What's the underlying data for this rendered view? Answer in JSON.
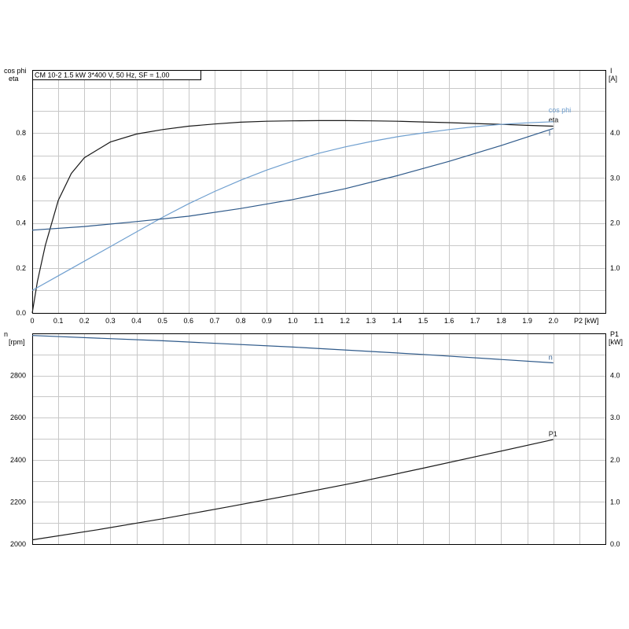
{
  "chart_data": [
    {
      "type": "line",
      "name_box": "CM 10-2   1.5 kW   3*400 V, 50 Hz, SF = 1,00",
      "xlabel": "P2 [kW]",
      "x_ticks": [
        "0",
        "0.1",
        "0.2",
        "0.3",
        "0.4",
        "0.5",
        "0.6",
        "0.7",
        "0.8",
        "0.9",
        "1.0",
        "1.1",
        "1.2",
        "1.3",
        "1.4",
        "1.5",
        "1.6",
        "1.7",
        "1.8",
        "1.9",
        "2.0"
      ],
      "xlim": [
        0,
        2.2
      ],
      "y_left_label_1": "cos phi",
      "y_left_label_2": "eta",
      "y_left_ticks": [
        "0.0",
        "0.2",
        "0.4",
        "0.6",
        "0.8"
      ],
      "y_left_lim": [
        0,
        1.08
      ],
      "y_right_label_1": "I",
      "y_right_label_2": "[A]",
      "y_right_ticks": [
        "1.0",
        "2.0",
        "3.0",
        "4.0"
      ],
      "y_right_lim": [
        0,
        5.4
      ],
      "grid": true,
      "series": [
        {
          "name": "eta",
          "axis": "left",
          "color": "#1a1a1a",
          "x": [
            0,
            0.02,
            0.05,
            0.1,
            0.15,
            0.2,
            0.3,
            0.4,
            0.5,
            0.6,
            0.7,
            0.8,
            0.9,
            1.0,
            1.1,
            1.2,
            1.3,
            1.4,
            1.5,
            1.6,
            1.7,
            1.8,
            1.9,
            2.0
          ],
          "y": [
            0,
            0.14,
            0.3,
            0.5,
            0.62,
            0.69,
            0.76,
            0.795,
            0.815,
            0.83,
            0.84,
            0.848,
            0.852,
            0.854,
            0.855,
            0.855,
            0.854,
            0.852,
            0.849,
            0.846,
            0.842,
            0.838,
            0.834,
            0.83
          ]
        },
        {
          "name": "cos phi",
          "axis": "left",
          "color": "#6f9fcf",
          "x": [
            0,
            0.1,
            0.2,
            0.3,
            0.4,
            0.5,
            0.6,
            0.7,
            0.8,
            0.9,
            1.0,
            1.1,
            1.2,
            1.3,
            1.4,
            1.5,
            1.6,
            1.7,
            1.8,
            1.9,
            2.0
          ],
          "y": [
            0.1,
            0.165,
            0.23,
            0.295,
            0.36,
            0.425,
            0.485,
            0.54,
            0.59,
            0.635,
            0.675,
            0.71,
            0.738,
            0.762,
            0.783,
            0.8,
            0.815,
            0.828,
            0.838,
            0.845,
            0.85
          ]
        },
        {
          "name": "I",
          "axis": "right",
          "color": "#2f5a8a",
          "x": [
            0,
            0.2,
            0.4,
            0.6,
            0.8,
            1.0,
            1.2,
            1.4,
            1.6,
            1.8,
            2.0
          ],
          "y": [
            1.84,
            1.92,
            2.03,
            2.15,
            2.32,
            2.52,
            2.76,
            3.05,
            3.37,
            3.72,
            4.1
          ]
        }
      ]
    },
    {
      "type": "line",
      "xlim": [
        0,
        2.2
      ],
      "y_left_label_1": "n",
      "y_left_label_2": "[rpm]",
      "y_left_ticks": [
        "2000",
        "2200",
        "2400",
        "2600",
        "2800"
      ],
      "y_left_lim": [
        2000,
        3000
      ],
      "y_right_label_1": "P1",
      "y_right_label_2": "[kW]",
      "y_right_ticks": [
        "0.0",
        "1.0",
        "2.0",
        "3.0",
        "4.0"
      ],
      "y_right_lim": [
        0,
        5.0
      ],
      "grid": true,
      "series": [
        {
          "name": "n",
          "axis": "left",
          "color": "#2f5a8a",
          "x": [
            0,
            0.5,
            1.0,
            1.5,
            2.0
          ],
          "y": [
            2990,
            2965,
            2935,
            2900,
            2860
          ]
        },
        {
          "name": "P1",
          "axis": "right",
          "color": "#1a1a1a",
          "x": [
            0,
            0.25,
            0.5,
            0.75,
            1.0,
            1.25,
            1.5,
            1.75,
            2.0
          ],
          "y": [
            0.1,
            0.34,
            0.6,
            0.88,
            1.17,
            1.47,
            1.8,
            2.14,
            2.48
          ]
        }
      ]
    }
  ]
}
